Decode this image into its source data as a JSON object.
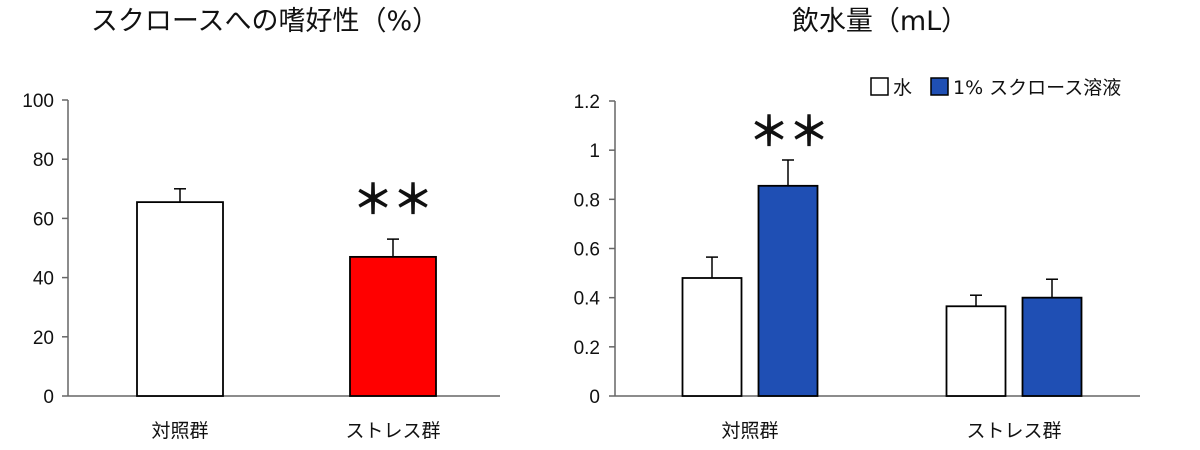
{
  "chart_data": [
    {
      "type": "bar",
      "title": "スクロースへの嗜好性（%）",
      "categories": [
        "対照群",
        "ストレス群"
      ],
      "values": [
        65.5,
        47
      ],
      "errors": [
        4.5,
        6
      ],
      "bar_colors": [
        "#ffffff",
        "#ff0000"
      ],
      "ylim": [
        0,
        100
      ],
      "yticks": [
        "0",
        "20",
        "40",
        "60",
        "80",
        "100"
      ],
      "significance": [
        {
          "category_index": 1,
          "label": "＊＊"
        }
      ]
    },
    {
      "type": "bar",
      "title": "飲水量（mL）",
      "categories": [
        "対照群",
        "ストレス群"
      ],
      "series": [
        {
          "name": "水",
          "color": "#ffffff",
          "values": [
            0.48,
            0.365
          ],
          "errors": [
            0.085,
            0.045
          ]
        },
        {
          "name": "1% スクロース溶液",
          "color": "#1f4fb4",
          "values": [
            0.855,
            0.4
          ],
          "errors": [
            0.105,
            0.075
          ]
        }
      ],
      "ylim": [
        0,
        1.2
      ],
      "yticks": [
        "0",
        "0.2",
        "0.4",
        "0.6",
        "0.8",
        "1",
        "1.2"
      ],
      "legend_position": "top-right",
      "significance": [
        {
          "category_index": 0,
          "series_index": 1,
          "label": "＊＊"
        }
      ]
    }
  ]
}
